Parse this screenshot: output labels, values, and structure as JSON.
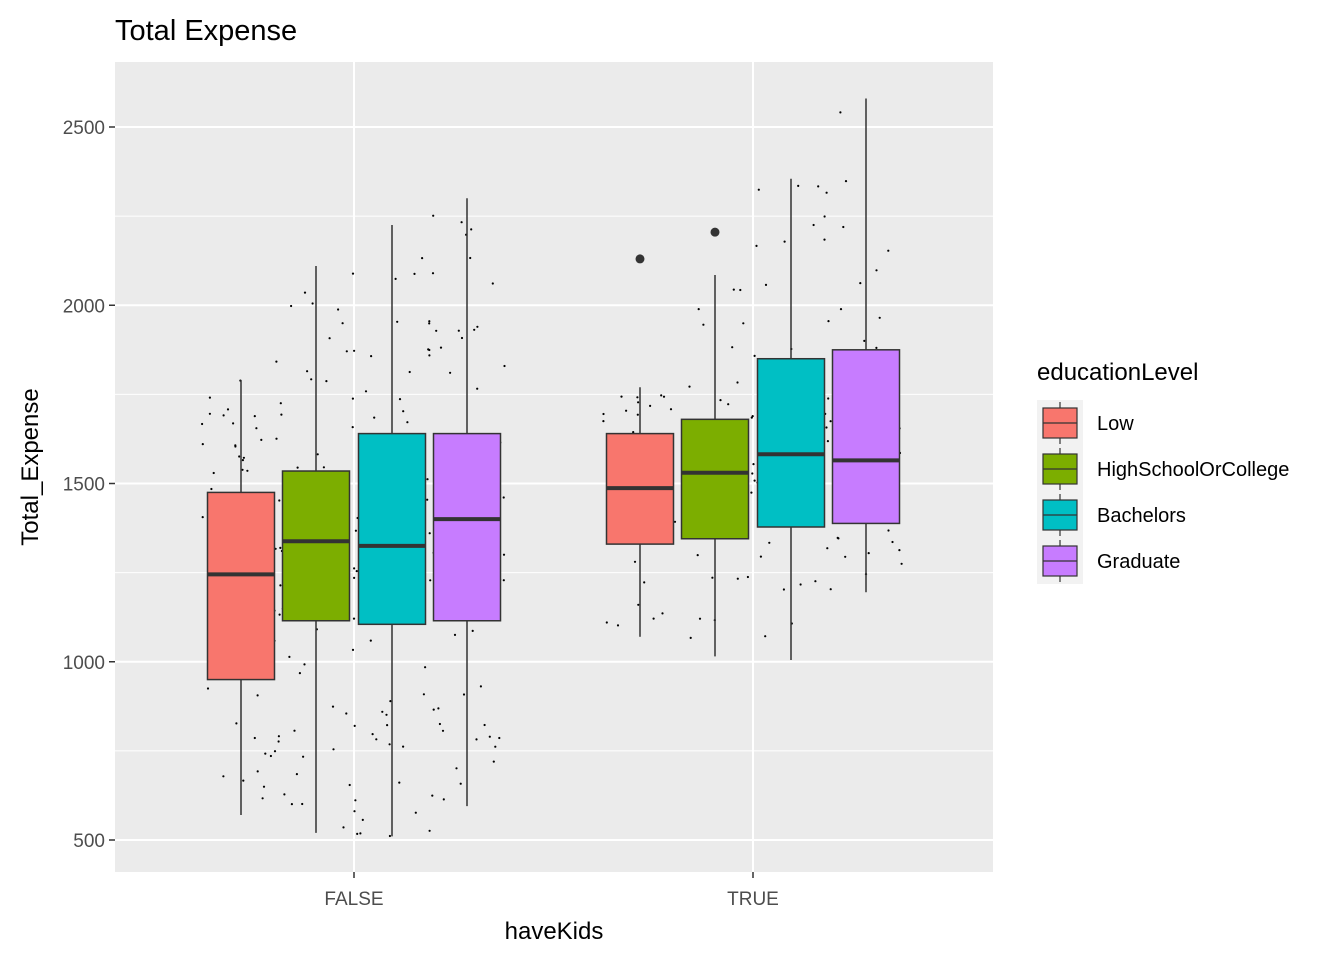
{
  "chart_data": {
    "type": "boxplot",
    "title": "Total Expense",
    "xlabel": "haveKids",
    "ylabel": "Total_Expense",
    "categories": [
      "FALSE",
      "TRUE"
    ],
    "ylim": [
      420,
      2650
    ],
    "yticks": [
      500,
      1000,
      1500,
      2000,
      2500
    ],
    "grid": true,
    "legend": {
      "title": "educationLevel",
      "position": "right"
    },
    "series": [
      {
        "name": "Low",
        "color": "#F8766D",
        "boxes": [
          {
            "category": "FALSE",
            "whisker_low": 570,
            "q1": 950,
            "median": 1245,
            "q3": 1475,
            "whisker_high": 1790,
            "outliers": []
          },
          {
            "category": "TRUE",
            "whisker_low": 1070,
            "q1": 1330,
            "median": 1487,
            "q3": 1640,
            "whisker_high": 1770,
            "outliers": [
              2130
            ]
          }
        ]
      },
      {
        "name": "HighSchoolOrCollege",
        "color": "#7CAE00",
        "boxes": [
          {
            "category": "FALSE",
            "whisker_low": 520,
            "q1": 1115,
            "median": 1338,
            "q3": 1535,
            "whisker_high": 2110,
            "outliers": []
          },
          {
            "category": "TRUE",
            "whisker_low": 1015,
            "q1": 1345,
            "median": 1530,
            "q3": 1680,
            "whisker_high": 2085,
            "outliers": [
              2205
            ]
          }
        ]
      },
      {
        "name": "Bachelors",
        "color": "#00BFC4",
        "boxes": [
          {
            "category": "FALSE",
            "whisker_low": 510,
            "q1": 1105,
            "median": 1325,
            "q3": 1640,
            "whisker_high": 2225,
            "outliers": []
          },
          {
            "category": "TRUE",
            "whisker_low": 1005,
            "q1": 1378,
            "median": 1582,
            "q3": 1850,
            "whisker_high": 2355,
            "outliers": []
          }
        ]
      },
      {
        "name": "Graduate",
        "color": "#C77CFF",
        "boxes": [
          {
            "category": "FALSE",
            "whisker_low": 595,
            "q1": 1115,
            "median": 1400,
            "q3": 1640,
            "whisker_high": 2300,
            "outliers": []
          },
          {
            "category": "TRUE",
            "whisker_low": 1195,
            "q1": 1388,
            "median": 1565,
            "q3": 1875,
            "whisker_high": 2580,
            "outliers": []
          }
        ]
      }
    ],
    "jitter_points": "individual observations drawn as small black jittered dots behind each box"
  },
  "colors": {
    "panel_background": "#EBEBEB",
    "grid_major": "#FFFFFF",
    "box_outline": "#333333",
    "median_line": "#333333",
    "point_color": "#000000"
  }
}
